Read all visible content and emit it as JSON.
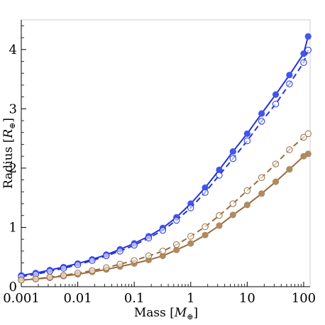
{
  "chart_data": {
    "type": "line",
    "xlabel_main": "Mass [",
    "xlabel_sym": "M",
    "xlabel_sub": "⊕",
    "xlabel_end": "]",
    "ylabel_main": "Radius [",
    "ylabel_sym": "R",
    "ylabel_sub": "⊕",
    "ylabel_end": "]",
    "x_scale": "log",
    "xlim": [
      0.001,
      130
    ],
    "ylim": [
      0,
      4.5
    ],
    "x_ticks": [
      {
        "value": 0.001,
        "label": "0.001"
      },
      {
        "value": 0.01,
        "label": "0.01"
      },
      {
        "value": 0.1,
        "label": "0.1"
      },
      {
        "value": 1,
        "label": "1"
      },
      {
        "value": 10,
        "label": "10"
      },
      {
        "value": 100,
        "label": "100"
      }
    ],
    "y_ticks": [
      {
        "value": 0,
        "label": "0"
      },
      {
        "value": 1,
        "label": "1"
      },
      {
        "value": 2,
        "label": "2"
      },
      {
        "value": 3,
        "label": "3"
      },
      {
        "value": 4,
        "label": "4"
      }
    ],
    "series": [
      {
        "color": "#2233dd",
        "marker_color": "#4455ee",
        "line": "solid",
        "marker": "filled",
        "x": [
          0.001,
          0.0018,
          0.0032,
          0.0056,
          0.01,
          0.018,
          0.032,
          0.056,
          0.1,
          0.18,
          0.32,
          0.56,
          1,
          1.8,
          3.2,
          5.6,
          10,
          18,
          32,
          56,
          100,
          120
        ],
        "y": [
          0.19,
          0.23,
          0.28,
          0.33,
          0.39,
          0.46,
          0.54,
          0.63,
          0.73,
          0.85,
          0.99,
          1.17,
          1.4,
          1.67,
          1.97,
          2.28,
          2.58,
          2.92,
          3.24,
          3.57,
          3.93,
          4.22
        ]
      },
      {
        "color": "#2233dd",
        "marker_color": "#2233dd",
        "line": "dashed",
        "marker": "open",
        "x": [
          0.001,
          0.0018,
          0.0032,
          0.0056,
          0.01,
          0.018,
          0.032,
          0.056,
          0.1,
          0.18,
          0.32,
          0.56,
          1,
          1.8,
          3.2,
          5.6,
          10,
          18,
          32,
          56,
          100,
          120
        ],
        "y": [
          0.17,
          0.21,
          0.26,
          0.31,
          0.37,
          0.44,
          0.52,
          0.6,
          0.7,
          0.82,
          0.95,
          1.12,
          1.33,
          1.59,
          1.88,
          2.16,
          2.46,
          2.79,
          3.08,
          3.42,
          3.78,
          3.99
        ]
      },
      {
        "color": "#9a6b3f",
        "marker_color": "#b08a60",
        "line": "solid",
        "marker": "filled",
        "x": [
          0.001,
          0.0018,
          0.0032,
          0.0056,
          0.01,
          0.018,
          0.032,
          0.056,
          0.1,
          0.18,
          0.32,
          0.56,
          1,
          1.8,
          3.2,
          5.6,
          10,
          18,
          32,
          56,
          100,
          120
        ],
        "y": [
          0.11,
          0.13,
          0.15,
          0.18,
          0.21,
          0.25,
          0.29,
          0.34,
          0.39,
          0.45,
          0.52,
          0.62,
          0.73,
          0.87,
          1.03,
          1.21,
          1.38,
          1.57,
          1.77,
          1.98,
          2.2,
          2.24
        ]
      },
      {
        "color": "#9a6b3f",
        "marker_color": "#9a6b3f",
        "line": "dashed",
        "marker": "open",
        "x": [
          0.001,
          0.0018,
          0.0032,
          0.0056,
          0.01,
          0.018,
          0.032,
          0.056,
          0.1,
          0.18,
          0.32,
          0.56,
          1,
          1.8,
          3.2,
          5.6,
          10,
          18,
          32,
          56,
          100,
          120
        ],
        "y": [
          0.11,
          0.13,
          0.16,
          0.19,
          0.23,
          0.27,
          0.32,
          0.38,
          0.44,
          0.52,
          0.6,
          0.71,
          0.85,
          1.01,
          1.2,
          1.4,
          1.62,
          1.84,
          2.07,
          2.31,
          2.52,
          2.58
        ]
      }
    ]
  }
}
